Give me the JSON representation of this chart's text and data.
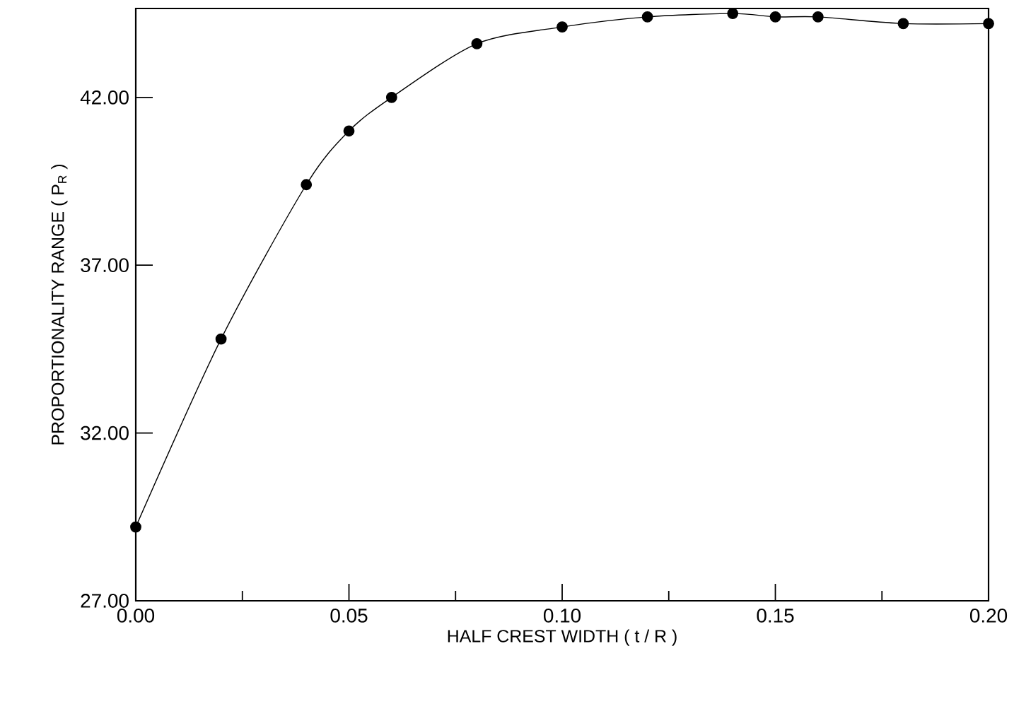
{
  "chart_data": {
    "type": "line",
    "xlabel": "HALF CREST WIDTH ( t / R )",
    "ylabel": "PROPORTIONALITY RANGE ( P$_{R}$ )",
    "x": [
      0.0,
      0.02,
      0.04,
      0.05,
      0.06,
      0.08,
      0.1,
      0.12,
      0.14,
      0.15,
      0.16,
      0.18,
      0.2
    ],
    "series": [
      {
        "color": "#000000",
        "values": [
          29.2,
          34.8,
          39.4,
          41.0,
          42.0,
          43.6,
          44.1,
          44.4,
          44.5,
          44.4,
          44.4,
          44.2,
          44.2
        ]
      }
    ],
    "marker": "circle",
    "line_style": "solid",
    "grid": false,
    "xlim": [
      0,
      0.2
    ],
    "ylim": [
      27,
      44.65
    ],
    "xticks": [
      {
        "value": 0,
        "label": "0.00"
      },
      {
        "value": 0.025,
        "label": null
      },
      {
        "value": 0.05,
        "label": "0.05"
      },
      {
        "value": 0.075,
        "label": null
      },
      {
        "value": 0.1,
        "label": "0.10"
      },
      {
        "value": 0.125,
        "label": null
      },
      {
        "value": 0.15,
        "label": "0.15"
      },
      {
        "value": 0.175,
        "label": null
      },
      {
        "value": 0.2,
        "label": "0.20"
      }
    ],
    "yticks": [
      {
        "value": 27,
        "label": "27.00"
      },
      {
        "value": 32,
        "label": "32.00"
      },
      {
        "value": 37,
        "label": "37.00"
      },
      {
        "value": 42,
        "label": "42.00"
      }
    ]
  }
}
